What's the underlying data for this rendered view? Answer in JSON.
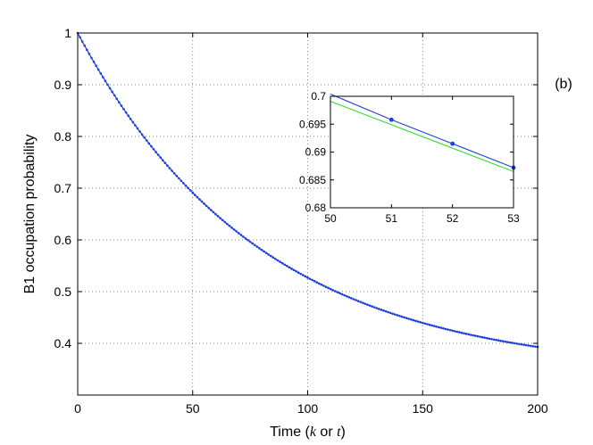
{
  "panel_label": "(b)",
  "colors": {
    "model": "#1f3fdd",
    "reference": "#33dd33"
  },
  "chart_data": [
    {
      "type": "line",
      "xlabel_parts": [
        "Time (",
        "k",
        " or ",
        "t",
        ")"
      ],
      "ylabel": "B1 occupation probability",
      "xlim": [
        0,
        200
      ],
      "ylim": [
        0.3,
        1.0
      ],
      "xticks": [
        0,
        50,
        100,
        150,
        200
      ],
      "xtick_labels": [
        "0",
        "50",
        "100",
        "150",
        "200"
      ],
      "yticks": [
        0.4,
        0.5,
        0.6,
        0.7,
        0.8,
        0.9,
        1.0
      ],
      "ytick_labels": [
        "0.4",
        "0.5",
        "0.6",
        "0.7",
        "0.8",
        "0.9",
        "1"
      ],
      "grid": true,
      "series": [
        {
          "x_start": 0,
          "x_end": 200,
          "x_step": 1,
          "y_start": 1.0,
          "y_end": 0.393,
          "asymptote": 0.34,
          "markers": true
        }
      ]
    },
    {
      "type": "line",
      "xlim": [
        50,
        53
      ],
      "ylim": [
        0.68,
        0.7
      ],
      "xticks": [
        50,
        51,
        52,
        53
      ],
      "xtick_labels": [
        "50",
        "51",
        "52",
        "53"
      ],
      "yticks": [
        0.68,
        0.685,
        0.69,
        0.695,
        0.7
      ],
      "ytick_labels": [
        "0.68",
        "0.685",
        "0.69",
        "0.695",
        "0.7"
      ],
      "grid": false,
      "series": [
        {
          "x": [
            50,
            51,
            52,
            53
          ],
          "y": [
            0.7004,
            0.6958,
            0.6915,
            0.6872
          ],
          "markers": true
        },
        {
          "x": [
            50,
            53
          ],
          "y": [
            0.6991,
            0.6865
          ],
          "markers": false
        }
      ]
    }
  ]
}
